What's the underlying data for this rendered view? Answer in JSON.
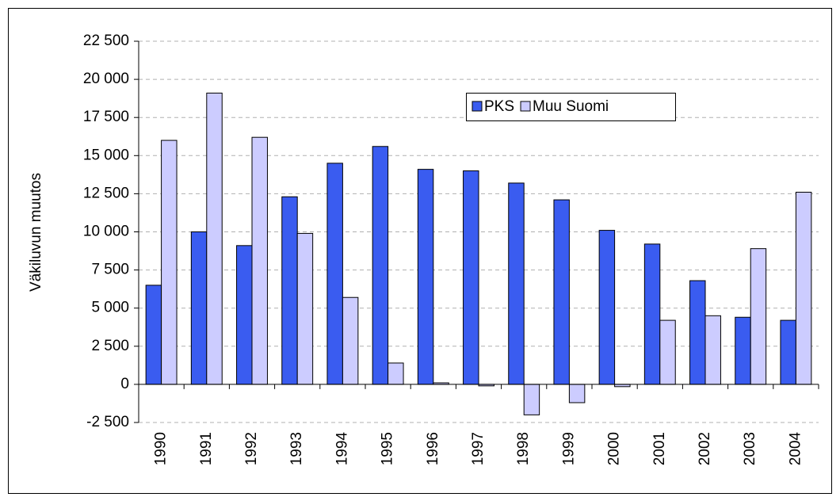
{
  "chart_data": {
    "type": "bar",
    "y_label": "Väkiluvun muutos",
    "categories": [
      "1990",
      "1991",
      "1992",
      "1993",
      "1994",
      "1995",
      "1996",
      "1997",
      "1998",
      "1999",
      "2000",
      "2001",
      "2002",
      "2003",
      "2004"
    ],
    "series": [
      {
        "name": "PKS",
        "color": "#3a5cf0",
        "values": [
          6500,
          10000,
          9100,
          12300,
          14500,
          15600,
          14100,
          14000,
          13200,
          12100,
          10100,
          9200,
          6800,
          4400,
          4200
        ]
      },
      {
        "name": "Muu Suomi",
        "color": "#ccccff",
        "values": [
          16000,
          19100,
          16200,
          9900,
          5700,
          1400,
          100,
          -100,
          -2000,
          -1200,
          -150,
          4200,
          4500,
          8900,
          12600
        ]
      }
    ],
    "ylim": [
      -2500,
      22500
    ],
    "yticks": [
      {
        "value": -2500,
        "label": "-2 500"
      },
      0,
      {
        "value": 2500,
        "label": "2 500"
      },
      {
        "value": 5000,
        "label": "5 000"
      },
      {
        "value": 7500,
        "label": "7 500"
      },
      {
        "value": 10000,
        "label": "10 000"
      },
      {
        "value": 12500,
        "label": "12 500"
      },
      {
        "value": 15000,
        "label": "15 000"
      },
      {
        "value": 17500,
        "label": "17 500"
      },
      {
        "value": 20000,
        "label": "20 000"
      },
      {
        "value": 22500,
        "label": "22 500"
      }
    ],
    "grid": true
  }
}
